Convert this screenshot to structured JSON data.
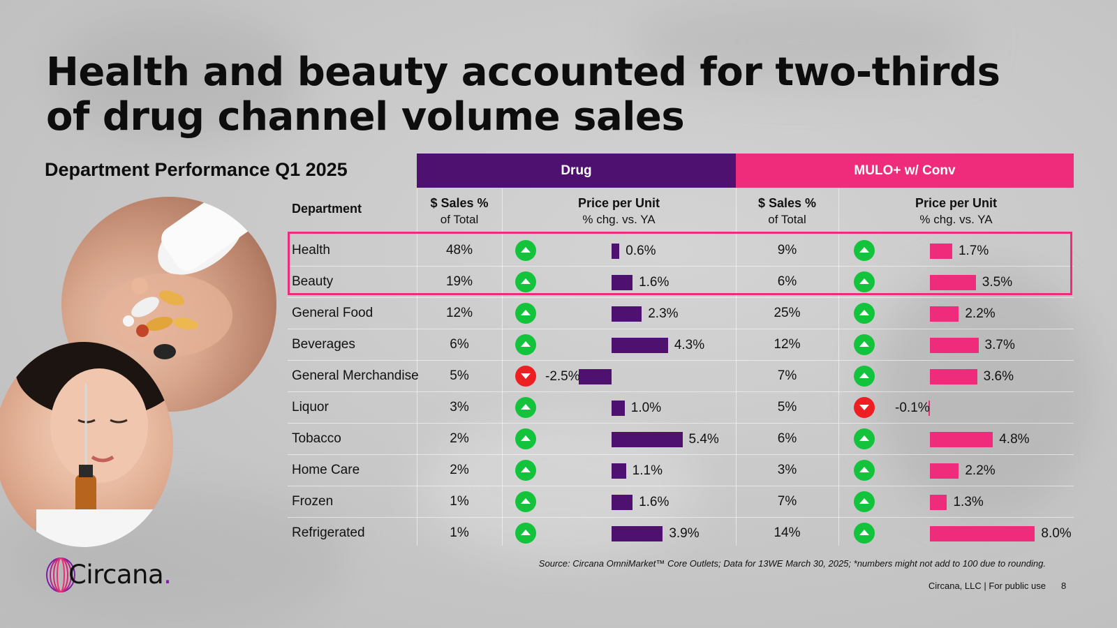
{
  "title": "Health and beauty accounted for two-thirds of drug channel volume sales",
  "subtitle": "Department Performance Q1 2025",
  "colors": {
    "drug": "#4f116f",
    "mulo": "#ef2b7b",
    "up": "#14c33c",
    "down": "#ee1f22",
    "highlight": "#ef2b7b"
  },
  "groups": {
    "drug": "Drug",
    "mulo": "MULO+ w/ Conv"
  },
  "headers": {
    "department": "Department",
    "sales_line1": "$ Sales %",
    "sales_line2": "of Total",
    "price_line1": "Price per Unit",
    "price_line2": "% chg. vs. YA"
  },
  "chart_data": {
    "type": "table",
    "title": "Department Performance Q1 2025",
    "columns": [
      "Department",
      "Drug $ Sales % of Total",
      "Drug Price per Unit % chg. vs. YA",
      "MULO+ w/ Conv $ Sales % of Total",
      "MULO+ w/ Conv Price per Unit % chg. vs. YA"
    ],
    "highlighted_rows": [
      "Health",
      "Beauty"
    ],
    "rows": [
      {
        "department": "Health",
        "drug_sales": "48%",
        "drug_price": 0.6,
        "drug_price_label": "0.6%",
        "mulo_sales": "9%",
        "mulo_price": 1.7,
        "mulo_price_label": "1.7%"
      },
      {
        "department": "Beauty",
        "drug_sales": "19%",
        "drug_price": 1.6,
        "drug_price_label": "1.6%",
        "mulo_sales": "6%",
        "mulo_price": 3.5,
        "mulo_price_label": "3.5%"
      },
      {
        "department": "General Food",
        "drug_sales": "12%",
        "drug_price": 2.3,
        "drug_price_label": "2.3%",
        "mulo_sales": "25%",
        "mulo_price": 2.2,
        "mulo_price_label": "2.2%"
      },
      {
        "department": "Beverages",
        "drug_sales": "6%",
        "drug_price": 4.3,
        "drug_price_label": "4.3%",
        "mulo_sales": "12%",
        "mulo_price": 3.7,
        "mulo_price_label": "3.7%"
      },
      {
        "department": "General Merchandise",
        "drug_sales": "5%",
        "drug_price": -2.5,
        "drug_price_label": "-2.5%",
        "mulo_sales": "7%",
        "mulo_price": 3.6,
        "mulo_price_label": "3.6%"
      },
      {
        "department": "Liquor",
        "drug_sales": "3%",
        "drug_price": 1.0,
        "drug_price_label": "1.0%",
        "mulo_sales": "5%",
        "mulo_price": -0.1,
        "mulo_price_label": "-0.1%"
      },
      {
        "department": "Tobacco",
        "drug_sales": "2%",
        "drug_price": 5.4,
        "drug_price_label": "5.4%",
        "mulo_sales": "6%",
        "mulo_price": 4.8,
        "mulo_price_label": "4.8%"
      },
      {
        "department": "Home Care",
        "drug_sales": "2%",
        "drug_price": 1.1,
        "drug_price_label": "1.1%",
        "mulo_sales": "3%",
        "mulo_price": 2.2,
        "mulo_price_label": "2.2%"
      },
      {
        "department": "Frozen",
        "drug_sales": "1%",
        "drug_price": 1.6,
        "drug_price_label": "1.6%",
        "mulo_sales": "7%",
        "mulo_price": 1.3,
        "mulo_price_label": "1.3%"
      },
      {
        "department": "Refrigerated",
        "drug_sales": "1%",
        "drug_price": 3.9,
        "drug_price_label": "3.9%",
        "mulo_sales": "14%",
        "mulo_price": 8.0,
        "mulo_price_label": "8.0%"
      }
    ]
  },
  "source": "Source: Circana OmniMarket™ Core Outlets; Data for 13WE March 30, 2025; *numbers might not add to 100 due to rounding.",
  "footer": "Circana, LLC | For public use",
  "page_number": "8",
  "logo": {
    "text": "Circana",
    "dot": "."
  },
  "icons": {
    "up": "arrow-up-circle-icon",
    "down": "arrow-down-circle-icon"
  }
}
